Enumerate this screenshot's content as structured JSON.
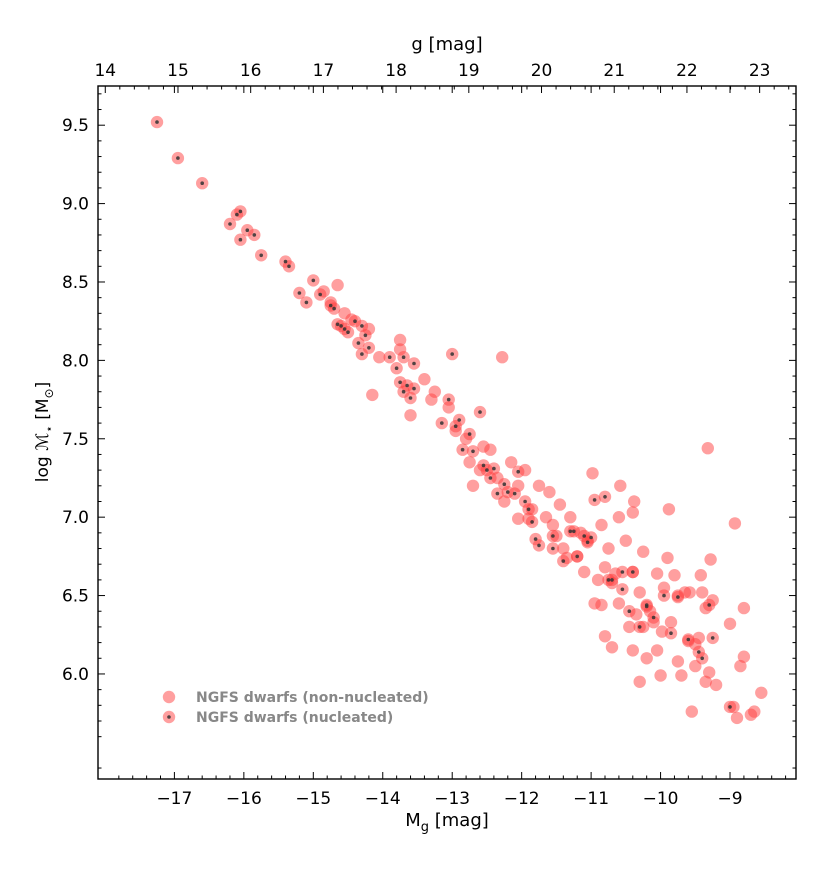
{
  "chart_data": {
    "type": "scatter",
    "xlabel": "M",
    "xlabel_sub": "g",
    "xlabel_unit": " [mag]",
    "ylabel": "log ℳ",
    "ylabel_sub": "⋆",
    "ylabel_unit": " [M",
    "ylabel_unit_sub": "⊙",
    "ylabel_close": "]",
    "top_xlabel": "g [mag]",
    "xlim": [
      -18.1,
      -8.05
    ],
    "ylim": [
      5.33,
      9.75
    ],
    "top_xlim": [
      13.9,
      23.5
    ],
    "xticks": [
      -17,
      -16,
      -15,
      -14,
      -13,
      -12,
      -11,
      -10,
      -9
    ],
    "xtick_labels": [
      "−17",
      "−16",
      "−15",
      "−14",
      "−13",
      "−12",
      "−11",
      "−10",
      "−9"
    ],
    "yticks": [
      6.0,
      6.5,
      7.0,
      7.5,
      8.0,
      8.5,
      9.0,
      9.5
    ],
    "ytick_labels": [
      "6.0",
      "6.5",
      "7.0",
      "7.5",
      "8.0",
      "8.5",
      "9.0",
      "9.5"
    ],
    "top_xticks": [
      14,
      15,
      16,
      17,
      18,
      19,
      20,
      21,
      22,
      23
    ],
    "top_xtick_labels": [
      "14",
      "15",
      "16",
      "17",
      "18",
      "19",
      "20",
      "21",
      "22",
      "23"
    ],
    "grid": false,
    "legend_position": "lower-left",
    "legend": [
      {
        "label": "NGFS dwarfs (non-nucleated)",
        "marker": "filled-circle"
      },
      {
        "label": "NGFS dwarfs (nucleated)",
        "marker": "filled-circle-with-dot"
      }
    ],
    "colors": {
      "marker": "#ff4040",
      "nucleus": "#333333",
      "legend_text": "#888888"
    },
    "series": [
      {
        "name": "NGFS dwarfs (non-nucleated)",
        "points": [
          [
            -14.85,
            8.44
          ],
          [
            -14.75,
            8.37
          ],
          [
            -14.65,
            8.48
          ],
          [
            -14.55,
            8.3
          ],
          [
            -14.45,
            8.26
          ],
          [
            -14.2,
            8.2
          ],
          [
            -14.15,
            7.78
          ],
          [
            -14.05,
            8.02
          ],
          [
            -13.75,
            8.07
          ],
          [
            -13.75,
            8.13
          ],
          [
            -13.6,
            7.65
          ],
          [
            -13.4,
            7.88
          ],
          [
            -13.3,
            7.75
          ],
          [
            -13.25,
            7.8
          ],
          [
            -13.05,
            7.7
          ],
          [
            -12.95,
            7.55
          ],
          [
            -12.8,
            7.5
          ],
          [
            -12.75,
            7.35
          ],
          [
            -12.7,
            7.2
          ],
          [
            -12.6,
            7.3
          ],
          [
            -12.55,
            7.45
          ],
          [
            -12.45,
            7.43
          ],
          [
            -12.35,
            7.25
          ],
          [
            -12.28,
            8.02
          ],
          [
            -12.25,
            7.1
          ],
          [
            -12.15,
            7.35
          ],
          [
            -12.05,
            7.2
          ],
          [
            -12.05,
            6.99
          ],
          [
            -11.95,
            7.3
          ],
          [
            -11.9,
            6.99
          ],
          [
            -11.85,
            7.05
          ],
          [
            -11.75,
            7.2
          ],
          [
            -11.65,
            7.0
          ],
          [
            -11.6,
            7.16
          ],
          [
            -11.55,
            6.95
          ],
          [
            -11.5,
            6.88
          ],
          [
            -11.45,
            7.08
          ],
          [
            -11.4,
            6.8
          ],
          [
            -11.35,
            6.74
          ],
          [
            -11.3,
            7.0
          ],
          [
            -11.2,
            6.75
          ],
          [
            -11.15,
            6.9
          ],
          [
            -11.1,
            6.65
          ],
          [
            -11.05,
            6.85
          ],
          [
            -10.98,
            7.28
          ],
          [
            -10.95,
            6.45
          ],
          [
            -10.9,
            6.6
          ],
          [
            -10.85,
            6.95
          ],
          [
            -10.85,
            6.44
          ],
          [
            -10.8,
            6.68
          ],
          [
            -10.8,
            6.24
          ],
          [
            -10.75,
            6.8
          ],
          [
            -10.7,
            6.58
          ],
          [
            -10.7,
            6.17
          ],
          [
            -10.65,
            6.64
          ],
          [
            -10.6,
            6.45
          ],
          [
            -10.6,
            7.0
          ],
          [
            -10.58,
            7.2
          ],
          [
            -10.5,
            6.85
          ],
          [
            -10.45,
            6.3
          ],
          [
            -10.4,
            6.65
          ],
          [
            -10.4,
            6.15
          ],
          [
            -10.4,
            7.03
          ],
          [
            -10.38,
            7.1
          ],
          [
            -10.35,
            6.38
          ],
          [
            -10.3,
            6.52
          ],
          [
            -10.3,
            5.95
          ],
          [
            -10.25,
            6.3
          ],
          [
            -10.25,
            6.78
          ],
          [
            -10.2,
            6.1
          ],
          [
            -10.15,
            6.4
          ],
          [
            -10.1,
            6.33
          ],
          [
            -10.05,
            6.15
          ],
          [
            -10.05,
            6.64
          ],
          [
            -10.0,
            5.99
          ],
          [
            -9.98,
            6.27
          ],
          [
            -9.95,
            6.55
          ],
          [
            -9.9,
            6.74
          ],
          [
            -9.88,
            7.05
          ],
          [
            -9.85,
            6.33
          ],
          [
            -9.8,
            6.63
          ],
          [
            -9.75,
            6.08
          ],
          [
            -9.75,
            6.5
          ],
          [
            -9.7,
            5.99
          ],
          [
            -9.65,
            6.52
          ],
          [
            -9.6,
            6.21
          ],
          [
            -9.58,
            6.52
          ],
          [
            -9.55,
            5.76
          ],
          [
            -9.5,
            6.05
          ],
          [
            -9.5,
            6.19
          ],
          [
            -9.45,
            6.23
          ],
          [
            -9.42,
            6.63
          ],
          [
            -9.4,
            6.52
          ],
          [
            -9.35,
            5.95
          ],
          [
            -9.35,
            6.42
          ],
          [
            -9.32,
            7.44
          ],
          [
            -9.3,
            6.01
          ],
          [
            -9.28,
            6.73
          ],
          [
            -9.25,
            6.47
          ],
          [
            -9.2,
            5.93
          ],
          [
            -9.0,
            6.32
          ],
          [
            -8.95,
            5.79
          ],
          [
            -8.93,
            6.96
          ],
          [
            -8.9,
            5.72
          ],
          [
            -8.85,
            6.05
          ],
          [
            -8.8,
            6.11
          ],
          [
            -8.8,
            6.42
          ],
          [
            -8.7,
            5.74
          ],
          [
            -8.65,
            5.76
          ],
          [
            -8.55,
            5.88
          ]
        ]
      },
      {
        "name": "NGFS dwarfs (nucleated)",
        "points": [
          [
            -17.25,
            9.52
          ],
          [
            -16.95,
            9.29
          ],
          [
            -16.6,
            9.13
          ],
          [
            -16.2,
            8.87
          ],
          [
            -16.1,
            8.93
          ],
          [
            -16.05,
            8.95
          ],
          [
            -16.05,
            8.77
          ],
          [
            -15.95,
            8.83
          ],
          [
            -15.85,
            8.8
          ],
          [
            -15.75,
            8.67
          ],
          [
            -15.4,
            8.63
          ],
          [
            -15.35,
            8.6
          ],
          [
            -15.2,
            8.43
          ],
          [
            -15.1,
            8.37
          ],
          [
            -15.0,
            8.51
          ],
          [
            -14.9,
            8.42
          ],
          [
            -14.75,
            8.35
          ],
          [
            -14.7,
            8.33
          ],
          [
            -14.65,
            8.23
          ],
          [
            -14.6,
            8.22
          ],
          [
            -14.55,
            8.2
          ],
          [
            -14.5,
            8.18
          ],
          [
            -14.4,
            8.25
          ],
          [
            -14.35,
            8.11
          ],
          [
            -14.3,
            8.22
          ],
          [
            -14.3,
            8.04
          ],
          [
            -14.25,
            8.16
          ],
          [
            -14.2,
            8.08
          ],
          [
            -13.9,
            8.02
          ],
          [
            -13.8,
            7.95
          ],
          [
            -13.75,
            7.86
          ],
          [
            -13.7,
            7.8
          ],
          [
            -13.7,
            8.02
          ],
          [
            -13.65,
            7.84
          ],
          [
            -13.6,
            7.76
          ],
          [
            -13.55,
            7.98
          ],
          [
            -13.55,
            7.82
          ],
          [
            -13.15,
            7.6
          ],
          [
            -13.05,
            7.75
          ],
          [
            -13.0,
            8.04
          ],
          [
            -12.95,
            7.58
          ],
          [
            -12.9,
            7.62
          ],
          [
            -12.85,
            7.43
          ],
          [
            -12.75,
            7.53
          ],
          [
            -12.7,
            7.42
          ],
          [
            -12.6,
            7.67
          ],
          [
            -12.55,
            7.33
          ],
          [
            -12.5,
            7.3
          ],
          [
            -12.45,
            7.25
          ],
          [
            -12.4,
            7.31
          ],
          [
            -12.35,
            7.15
          ],
          [
            -12.25,
            7.21
          ],
          [
            -12.2,
            7.16
          ],
          [
            -12.1,
            7.15
          ],
          [
            -12.05,
            7.29
          ],
          [
            -11.95,
            7.1
          ],
          [
            -11.9,
            7.05
          ],
          [
            -11.85,
            6.97
          ],
          [
            -11.8,
            6.86
          ],
          [
            -11.75,
            6.82
          ],
          [
            -11.55,
            6.8
          ],
          [
            -11.55,
            6.88
          ],
          [
            -11.4,
            6.72
          ],
          [
            -11.3,
            6.91
          ],
          [
            -11.25,
            6.91
          ],
          [
            -11.2,
            6.75
          ],
          [
            -11.1,
            6.88
          ],
          [
            -11.05,
            6.84
          ],
          [
            -11.0,
            6.87
          ],
          [
            -10.95,
            7.11
          ],
          [
            -10.8,
            7.13
          ],
          [
            -10.75,
            6.6
          ],
          [
            -10.7,
            6.6
          ],
          [
            -10.55,
            6.54
          ],
          [
            -10.55,
            6.65
          ],
          [
            -10.45,
            6.4
          ],
          [
            -10.4,
            6.65
          ],
          [
            -10.3,
            6.3
          ],
          [
            -10.2,
            6.43
          ],
          [
            -10.2,
            6.44
          ],
          [
            -10.1,
            6.36
          ],
          [
            -9.95,
            6.5
          ],
          [
            -9.85,
            6.26
          ],
          [
            -9.75,
            6.49
          ],
          [
            -9.6,
            6.22
          ],
          [
            -9.45,
            6.14
          ],
          [
            -9.4,
            6.1
          ],
          [
            -9.3,
            6.44
          ],
          [
            -9.25,
            6.23
          ],
          [
            -9.0,
            5.79
          ]
        ]
      }
    ]
  }
}
